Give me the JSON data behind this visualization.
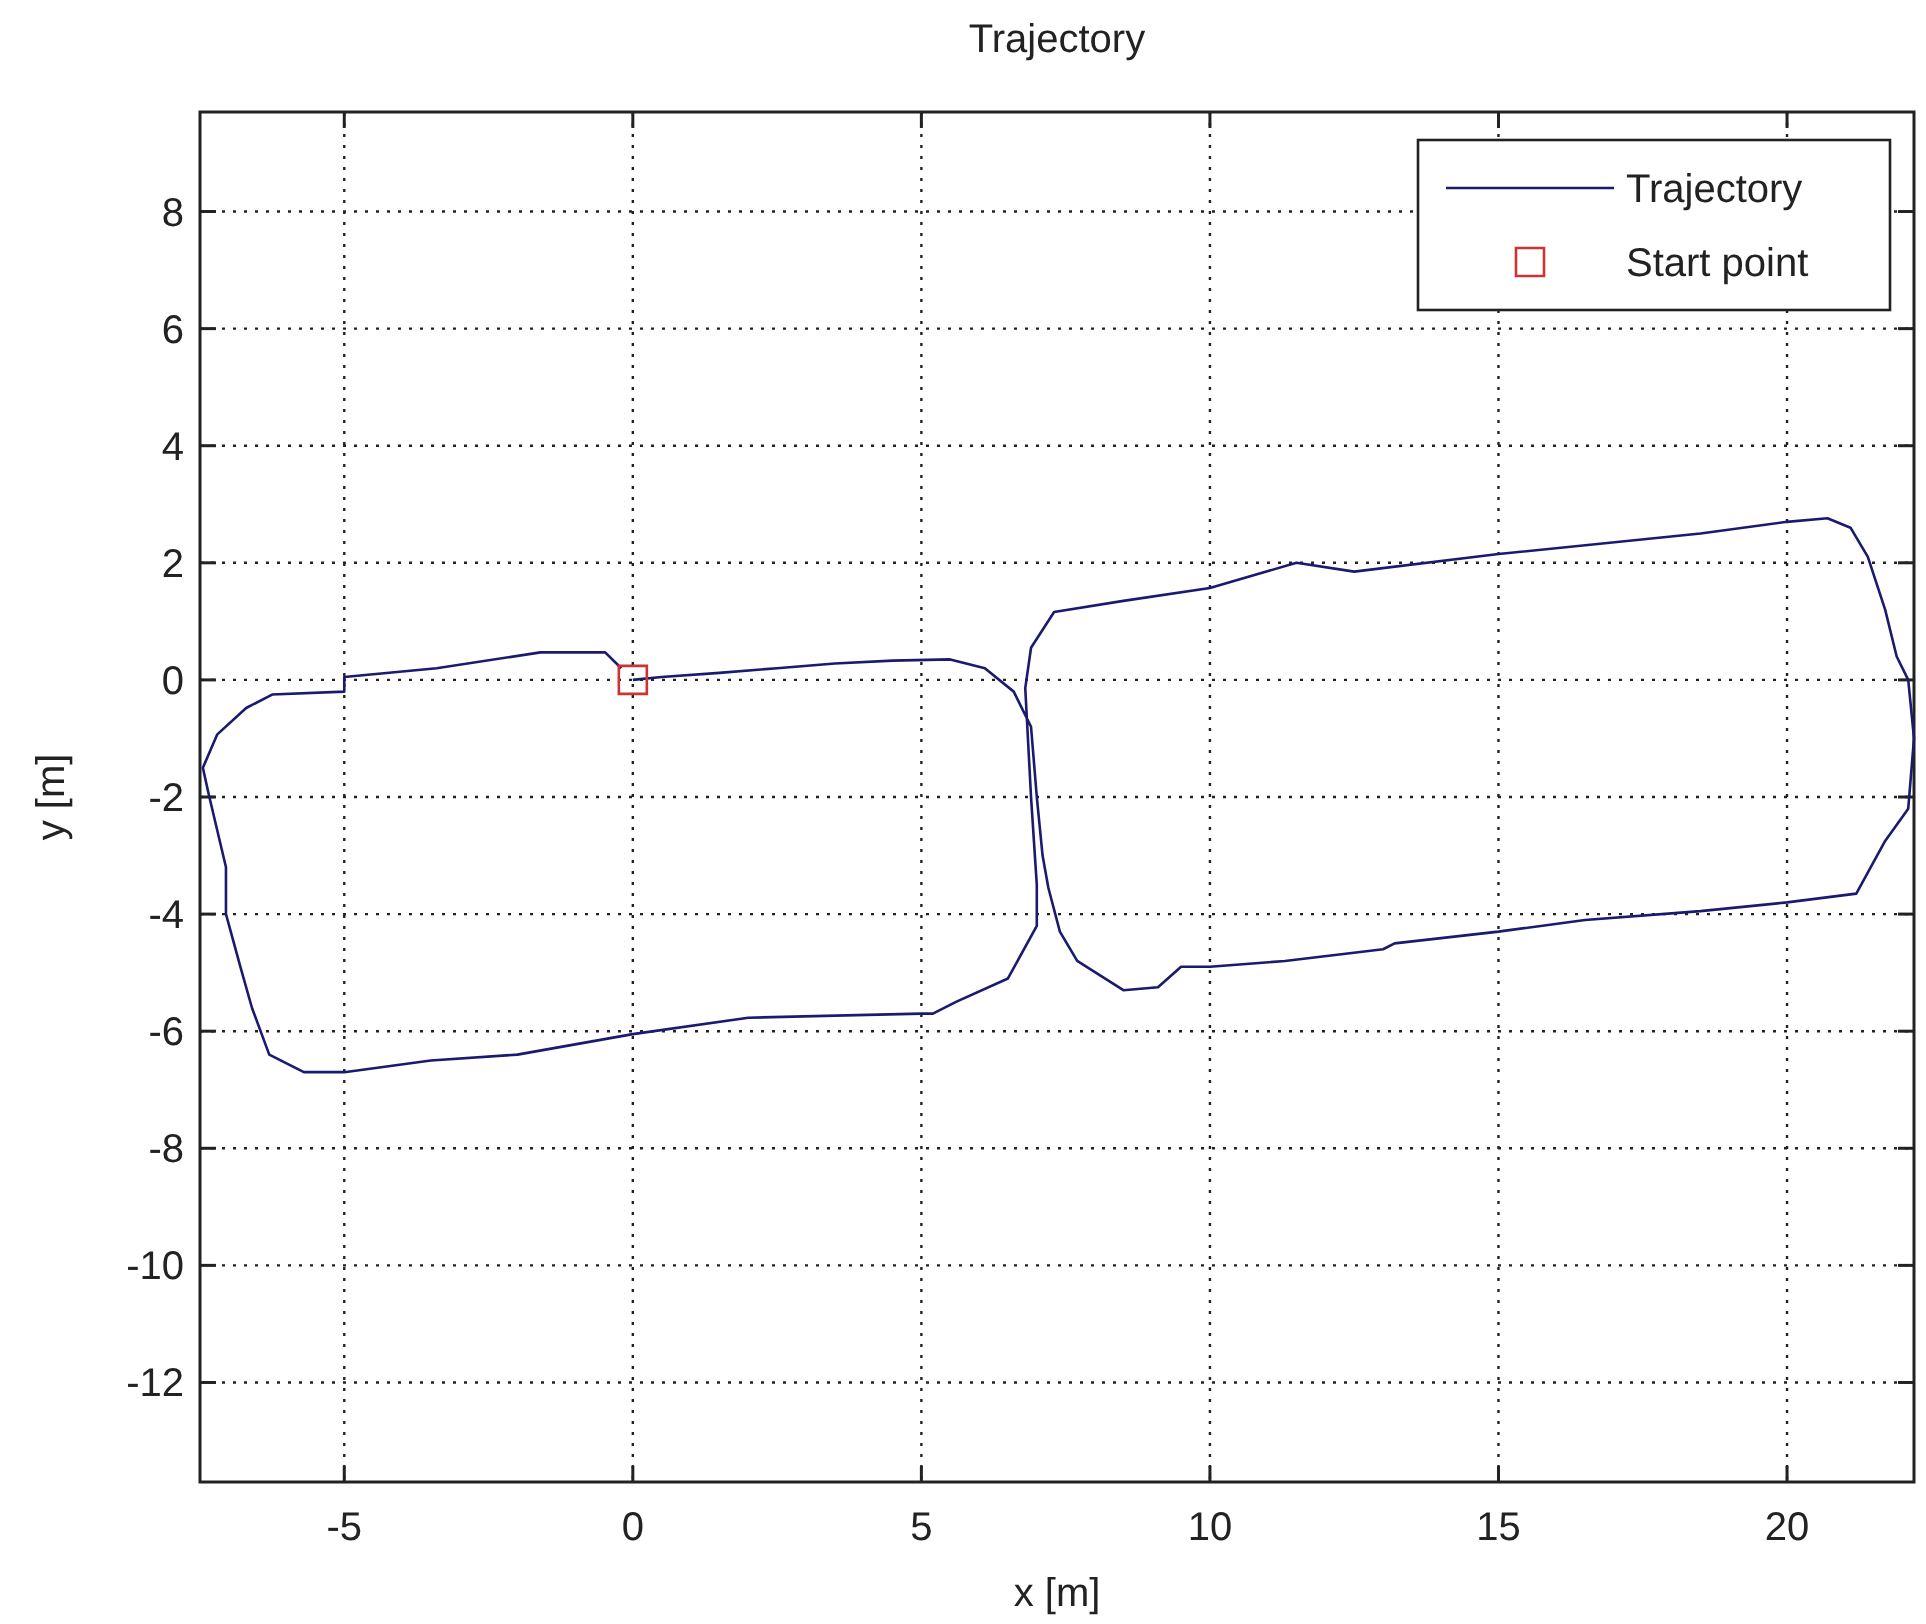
{
  "chart_data": {
    "type": "line",
    "title": "Trajectory",
    "xlabel": "x [m]",
    "ylabel": "y [m]",
    "xlim": [
      -7.5,
      22.2
    ],
    "ylim": [
      -13.7,
      9.7
    ],
    "xticks": [
      -5,
      0,
      5,
      10,
      15,
      20
    ],
    "yticks": [
      -12,
      -10,
      -8,
      -6,
      -4,
      -2,
      0,
      2,
      4,
      6,
      8
    ],
    "grid": true,
    "legend": "top right",
    "line_style": "dotted",
    "series": [
      {
        "name": "Trajectory",
        "color": "#1a1a6e",
        "marker": "none",
        "line_style": "solid",
        "x": [
          0,
          0.5,
          1.5,
          2.5,
          3.5,
          4.5,
          5.5,
          6.1,
          6.6,
          6.9,
          7.0,
          7.1,
          7.2,
          7.4,
          7.7,
          8.5,
          9.1,
          9.5,
          10,
          11.3,
          13,
          13.2,
          15,
          16.5,
          18.5,
          20,
          21.2,
          21.7,
          22.1,
          22.2,
          22.1,
          21.9,
          21.7,
          21.4,
          21.1,
          20.7,
          20,
          18.5,
          15,
          12.5,
          11.5,
          10,
          8.5,
          7.3,
          6.9,
          6.8,
          6.9,
          7.0,
          7.0,
          6.5,
          5.6,
          5.2,
          5,
          2,
          0,
          -2,
          -3.5,
          -5,
          -5.7,
          -6.3,
          -6.6,
          -6.8,
          -7.05,
          -7.05,
          -7.35,
          -7.45,
          -7.2,
          -6.7,
          -6.25,
          -5.0,
          -5.0,
          -3.4,
          -1.6,
          -0.48,
          -0.2
        ],
        "values": [
          0,
          0.05,
          0.12,
          0.2,
          0.28,
          0.33,
          0.35,
          0.2,
          -0.2,
          -0.8,
          -2,
          -3,
          -3.55,
          -4.3,
          -4.8,
          -5.3,
          -5.25,
          -4.9,
          -4.9,
          -4.8,
          -4.6,
          -4.5,
          -4.3,
          -4.1,
          -3.95,
          -3.8,
          -3.65,
          -2.75,
          -2.2,
          -1,
          0,
          0.4,
          1.2,
          2.1,
          2.6,
          2.76,
          2.7,
          2.5,
          2.15,
          1.85,
          2.0,
          1.57,
          1.35,
          1.16,
          0.55,
          -0.14,
          -2,
          -3.5,
          -4.2,
          -5.1,
          -5.5,
          -5.7,
          -5.7,
          -5.77,
          -6.05,
          -6.4,
          -6.5,
          -6.7,
          -6.7,
          -6.4,
          -5.6,
          -4.9,
          -4.0,
          -3.2,
          -1.95,
          -1.5,
          -0.93,
          -0.48,
          -0.25,
          -0.2,
          0.05,
          0.2,
          0.47,
          0.47,
          0.2
        ]
      },
      {
        "name": "Start point",
        "type": "scatter",
        "color": "#cc3333",
        "marker": "square",
        "x": [
          0
        ],
        "values": [
          0
        ]
      }
    ]
  }
}
